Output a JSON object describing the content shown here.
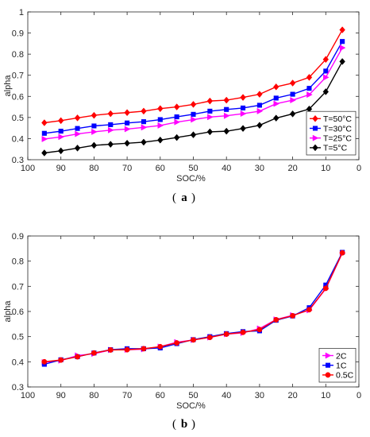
{
  "chart_data": [
    {
      "id": "a",
      "caption_letter": "a",
      "type": "line",
      "title": "",
      "xlabel": "SOC/%",
      "ylabel": "alpha",
      "xlim": [
        100,
        0
      ],
      "x_reversed": true,
      "ylim": [
        0.3,
        1.0
      ],
      "xticks": [
        100,
        90,
        80,
        70,
        60,
        50,
        40,
        30,
        20,
        10,
        0
      ],
      "yticks": [
        0.3,
        0.4,
        0.5,
        0.6,
        0.7,
        0.8,
        0.9,
        1
      ],
      "grid": false,
      "legend_position": "bottom-right",
      "x": [
        95,
        90,
        85,
        80,
        75,
        70,
        65,
        60,
        55,
        50,
        45,
        40,
        35,
        30,
        25,
        20,
        15,
        10,
        5
      ],
      "series": [
        {
          "name": "T=50°C",
          "color": "#ff0000",
          "marker": "diamond",
          "values": [
            0.475,
            0.485,
            0.498,
            0.51,
            0.518,
            0.523,
            0.53,
            0.542,
            0.55,
            0.562,
            0.578,
            0.582,
            0.595,
            0.61,
            0.645,
            0.663,
            0.69,
            0.775,
            0.915
          ]
        },
        {
          "name": "T=30°C",
          "color": "#0000ff",
          "marker": "square",
          "values": [
            0.425,
            0.435,
            0.448,
            0.46,
            0.466,
            0.474,
            0.48,
            0.49,
            0.503,
            0.515,
            0.53,
            0.538,
            0.545,
            0.558,
            0.592,
            0.61,
            0.638,
            0.72,
            0.86
          ]
        },
        {
          "name": "T=25°C",
          "color": "#ff00ff",
          "marker": "triangle-right",
          "values": [
            0.398,
            0.408,
            0.422,
            0.432,
            0.44,
            0.445,
            0.453,
            0.462,
            0.478,
            0.49,
            0.502,
            0.508,
            0.518,
            0.53,
            0.565,
            0.582,
            0.608,
            0.69,
            0.83
          ]
        },
        {
          "name": "T=5°C",
          "color": "#000000",
          "marker": "diamond",
          "values": [
            0.332,
            0.342,
            0.355,
            0.368,
            0.373,
            0.378,
            0.383,
            0.393,
            0.405,
            0.418,
            0.432,
            0.435,
            0.448,
            0.463,
            0.497,
            0.517,
            0.54,
            0.622,
            0.765
          ]
        }
      ]
    },
    {
      "id": "b",
      "caption_letter": "b",
      "type": "line",
      "title": "",
      "xlabel": "SOC/%",
      "ylabel": "alpha",
      "xlim": [
        100,
        0
      ],
      "x_reversed": true,
      "ylim": [
        0.3,
        0.9
      ],
      "xticks": [
        100,
        90,
        80,
        70,
        60,
        50,
        40,
        30,
        20,
        10,
        0
      ],
      "yticks": [
        0.3,
        0.4,
        0.5,
        0.6,
        0.7,
        0.8,
        0.9
      ],
      "grid": false,
      "legend_position": "bottom-right",
      "x": [
        95,
        90,
        85,
        80,
        75,
        70,
        65,
        60,
        55,
        50,
        45,
        40,
        35,
        30,
        25,
        20,
        15,
        10,
        5
      ],
      "series": [
        {
          "name": "2C",
          "color": "#ff00ff",
          "marker": "triangle-right",
          "values": [
            0.398,
            0.405,
            0.425,
            0.432,
            0.447,
            0.448,
            0.45,
            0.46,
            0.478,
            0.487,
            0.497,
            0.51,
            0.515,
            0.532,
            0.568,
            0.585,
            0.605,
            0.69,
            0.832
          ]
        },
        {
          "name": "1C",
          "color": "#0000ff",
          "marker": "square",
          "values": [
            0.39,
            0.408,
            0.42,
            0.435,
            0.448,
            0.452,
            0.452,
            0.455,
            0.472,
            0.488,
            0.5,
            0.512,
            0.52,
            0.523,
            0.565,
            0.582,
            0.615,
            0.705,
            0.835
          ]
        },
        {
          "name": "0.5C",
          "color": "#ff0000",
          "marker": "circle",
          "values": [
            0.4,
            0.407,
            0.42,
            0.435,
            0.447,
            0.448,
            0.452,
            0.46,
            0.475,
            0.487,
            0.497,
            0.51,
            0.517,
            0.528,
            0.567,
            0.583,
            0.607,
            0.692,
            0.833
          ]
        }
      ]
    }
  ]
}
